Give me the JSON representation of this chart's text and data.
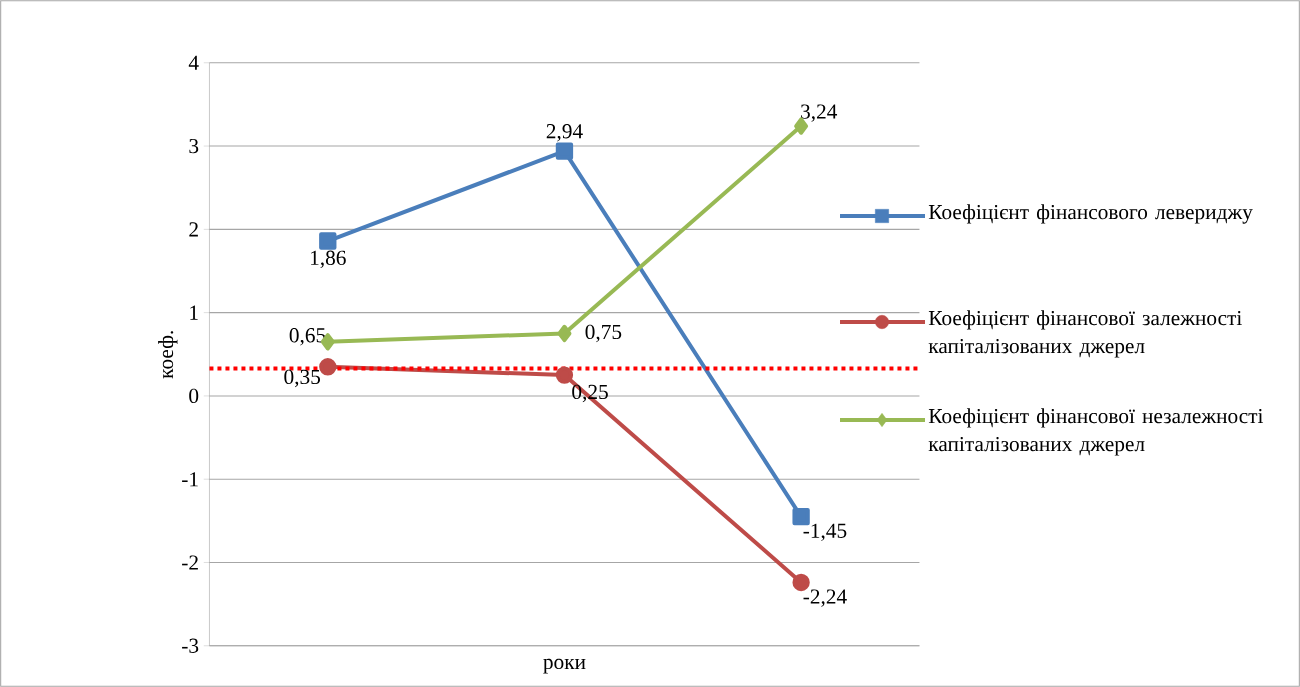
{
  "chart_data": {
    "type": "line",
    "xlabel": "роки",
    "ylabel": "коеф.",
    "categories": [
      null,
      null,
      null
    ],
    "ylim": [
      -3,
      4
    ],
    "yticks": [
      -3,
      -2,
      -1,
      0,
      1,
      2,
      3,
      4
    ],
    "grid": "y",
    "legend": "right",
    "line_style": "solid",
    "series": [
      {
        "name": "Коефіцієнт фінансового левериджу",
        "color": "#4a7ebb",
        "marker": "square",
        "values": [
          1.86,
          2.94,
          -1.45
        ],
        "value_labels": [
          "1,86",
          "2,94",
          "-1,45"
        ]
      },
      {
        "name": "Коефіцієнт фінансової залежності капіталізованих джерел",
        "color": "#be4b48",
        "marker": "circle",
        "values": [
          0.35,
          0.25,
          -2.24
        ],
        "value_labels": [
          "0,35",
          "0,25",
          "-2,24"
        ]
      },
      {
        "name": "Коефіцієнт фінансової незалежності капіталізованих джерел",
        "color": "#98b954",
        "marker": "diamond",
        "values": [
          0.65,
          0.75,
          3.24
        ],
        "value_labels": [
          "0,65",
          "0,75",
          "3,24"
        ]
      }
    ],
    "ref_lines": [
      {
        "axis": "y",
        "value": 0.33,
        "color": "#ff0000",
        "line_style": "dotted"
      }
    ]
  }
}
